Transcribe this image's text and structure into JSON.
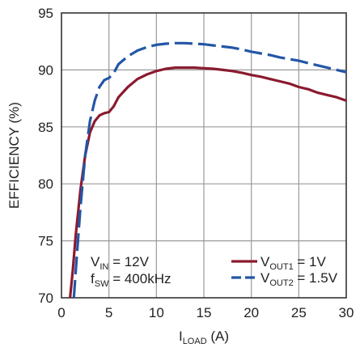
{
  "chart_data": {
    "type": "line",
    "xlabel": {
      "main": "I",
      "sub": "LOAD",
      "suffix": " (A)"
    },
    "ylabel": "EFFICIENCY (%)",
    "xlim": [
      0,
      30
    ],
    "ylim": [
      70,
      95
    ],
    "x_ticks": [
      0,
      5,
      10,
      15,
      20,
      25,
      30
    ],
    "y_ticks": [
      70,
      75,
      80,
      85,
      90,
      95
    ],
    "grid": true,
    "legend_position": "bottom-right",
    "annotation": [
      {
        "main": "V",
        "sub": "IN",
        "suffix": " = 12V"
      },
      {
        "main": "f",
        "sub": "SW",
        "suffix": " = 400kHz"
      }
    ],
    "series": [
      {
        "label": {
          "main": "V",
          "sub": "OUT1",
          "suffix": " = 1V"
        },
        "color": "#8b1a2f",
        "dash": "solid",
        "x": [
          0.9,
          1.2,
          1.5,
          2.0,
          2.5,
          3.0,
          3.5,
          4.0,
          4.5,
          5.0,
          5.5,
          6.0,
          7.0,
          8.0,
          9.0,
          10.0,
          11.0,
          12.0,
          13.0,
          14.0,
          15.0,
          16.0,
          17.0,
          18.0,
          19.0,
          20.0,
          21.0,
          22.0,
          23.0,
          24.0,
          25.0,
          26.0,
          27.0,
          28.0,
          29.0,
          30.0
        ],
        "y": [
          70.0,
          72.5,
          75.5,
          79.5,
          82.5,
          84.5,
          85.5,
          86.0,
          86.2,
          86.3,
          86.8,
          87.6,
          88.5,
          89.2,
          89.6,
          89.9,
          90.1,
          90.2,
          90.2,
          90.2,
          90.15,
          90.1,
          90.0,
          89.9,
          89.75,
          89.55,
          89.4,
          89.2,
          89.0,
          88.8,
          88.5,
          88.3,
          88.0,
          87.8,
          87.6,
          87.3
        ]
      },
      {
        "label": {
          "main": "V",
          "sub": "OUT2",
          "suffix": " = 1.5V"
        },
        "color": "#2456a6",
        "dash": "dash",
        "x": [
          1.3,
          1.6,
          2.0,
          2.5,
          3.0,
          3.5,
          4.0,
          4.5,
          5.0,
          5.5,
          6.0,
          7.0,
          8.0,
          9.0,
          10.0,
          11.0,
          12.0,
          13.0,
          14.0,
          15.0,
          16.0,
          17.0,
          18.0,
          19.0,
          20.0,
          21.0,
          22.0,
          23.0,
          24.0,
          25.0,
          26.0,
          27.0,
          28.0,
          29.0,
          30.0
        ],
        "y": [
          70.0,
          73.5,
          78.0,
          82.5,
          85.5,
          87.3,
          88.5,
          89.1,
          89.3,
          89.7,
          90.5,
          91.2,
          91.7,
          92.0,
          92.2,
          92.3,
          92.35,
          92.35,
          92.3,
          92.25,
          92.15,
          92.05,
          91.95,
          91.8,
          91.6,
          91.45,
          91.3,
          91.1,
          90.95,
          90.8,
          90.6,
          90.4,
          90.2,
          90.0,
          89.8
        ]
      }
    ]
  }
}
